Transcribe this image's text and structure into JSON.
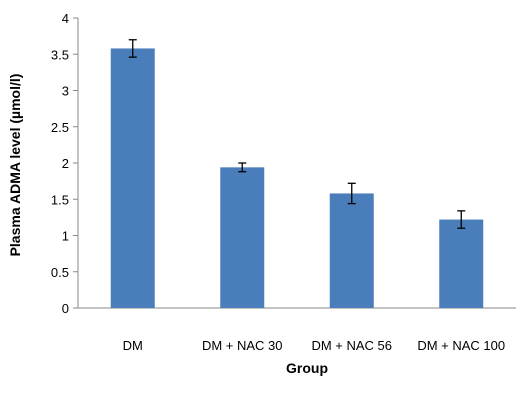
{
  "chart_data": {
    "type": "bar",
    "categories": [
      "DM",
      "DM + NAC 30",
      "DM + NAC 56",
      "DM + NAC 100"
    ],
    "values": [
      3.58,
      1.94,
      1.58,
      1.22
    ],
    "errors": [
      0.12,
      0.06,
      0.14,
      0.12
    ],
    "xlabel": "Group",
    "ylabel": "Plasma  ADMA level (µmol/l)",
    "ylim": [
      0,
      4
    ],
    "yticks": [
      0,
      0.5,
      1,
      1.5,
      2,
      2.5,
      3,
      3.5,
      4
    ],
    "grid": false,
    "legend": "none",
    "bar_color": "#4a7ebb"
  }
}
